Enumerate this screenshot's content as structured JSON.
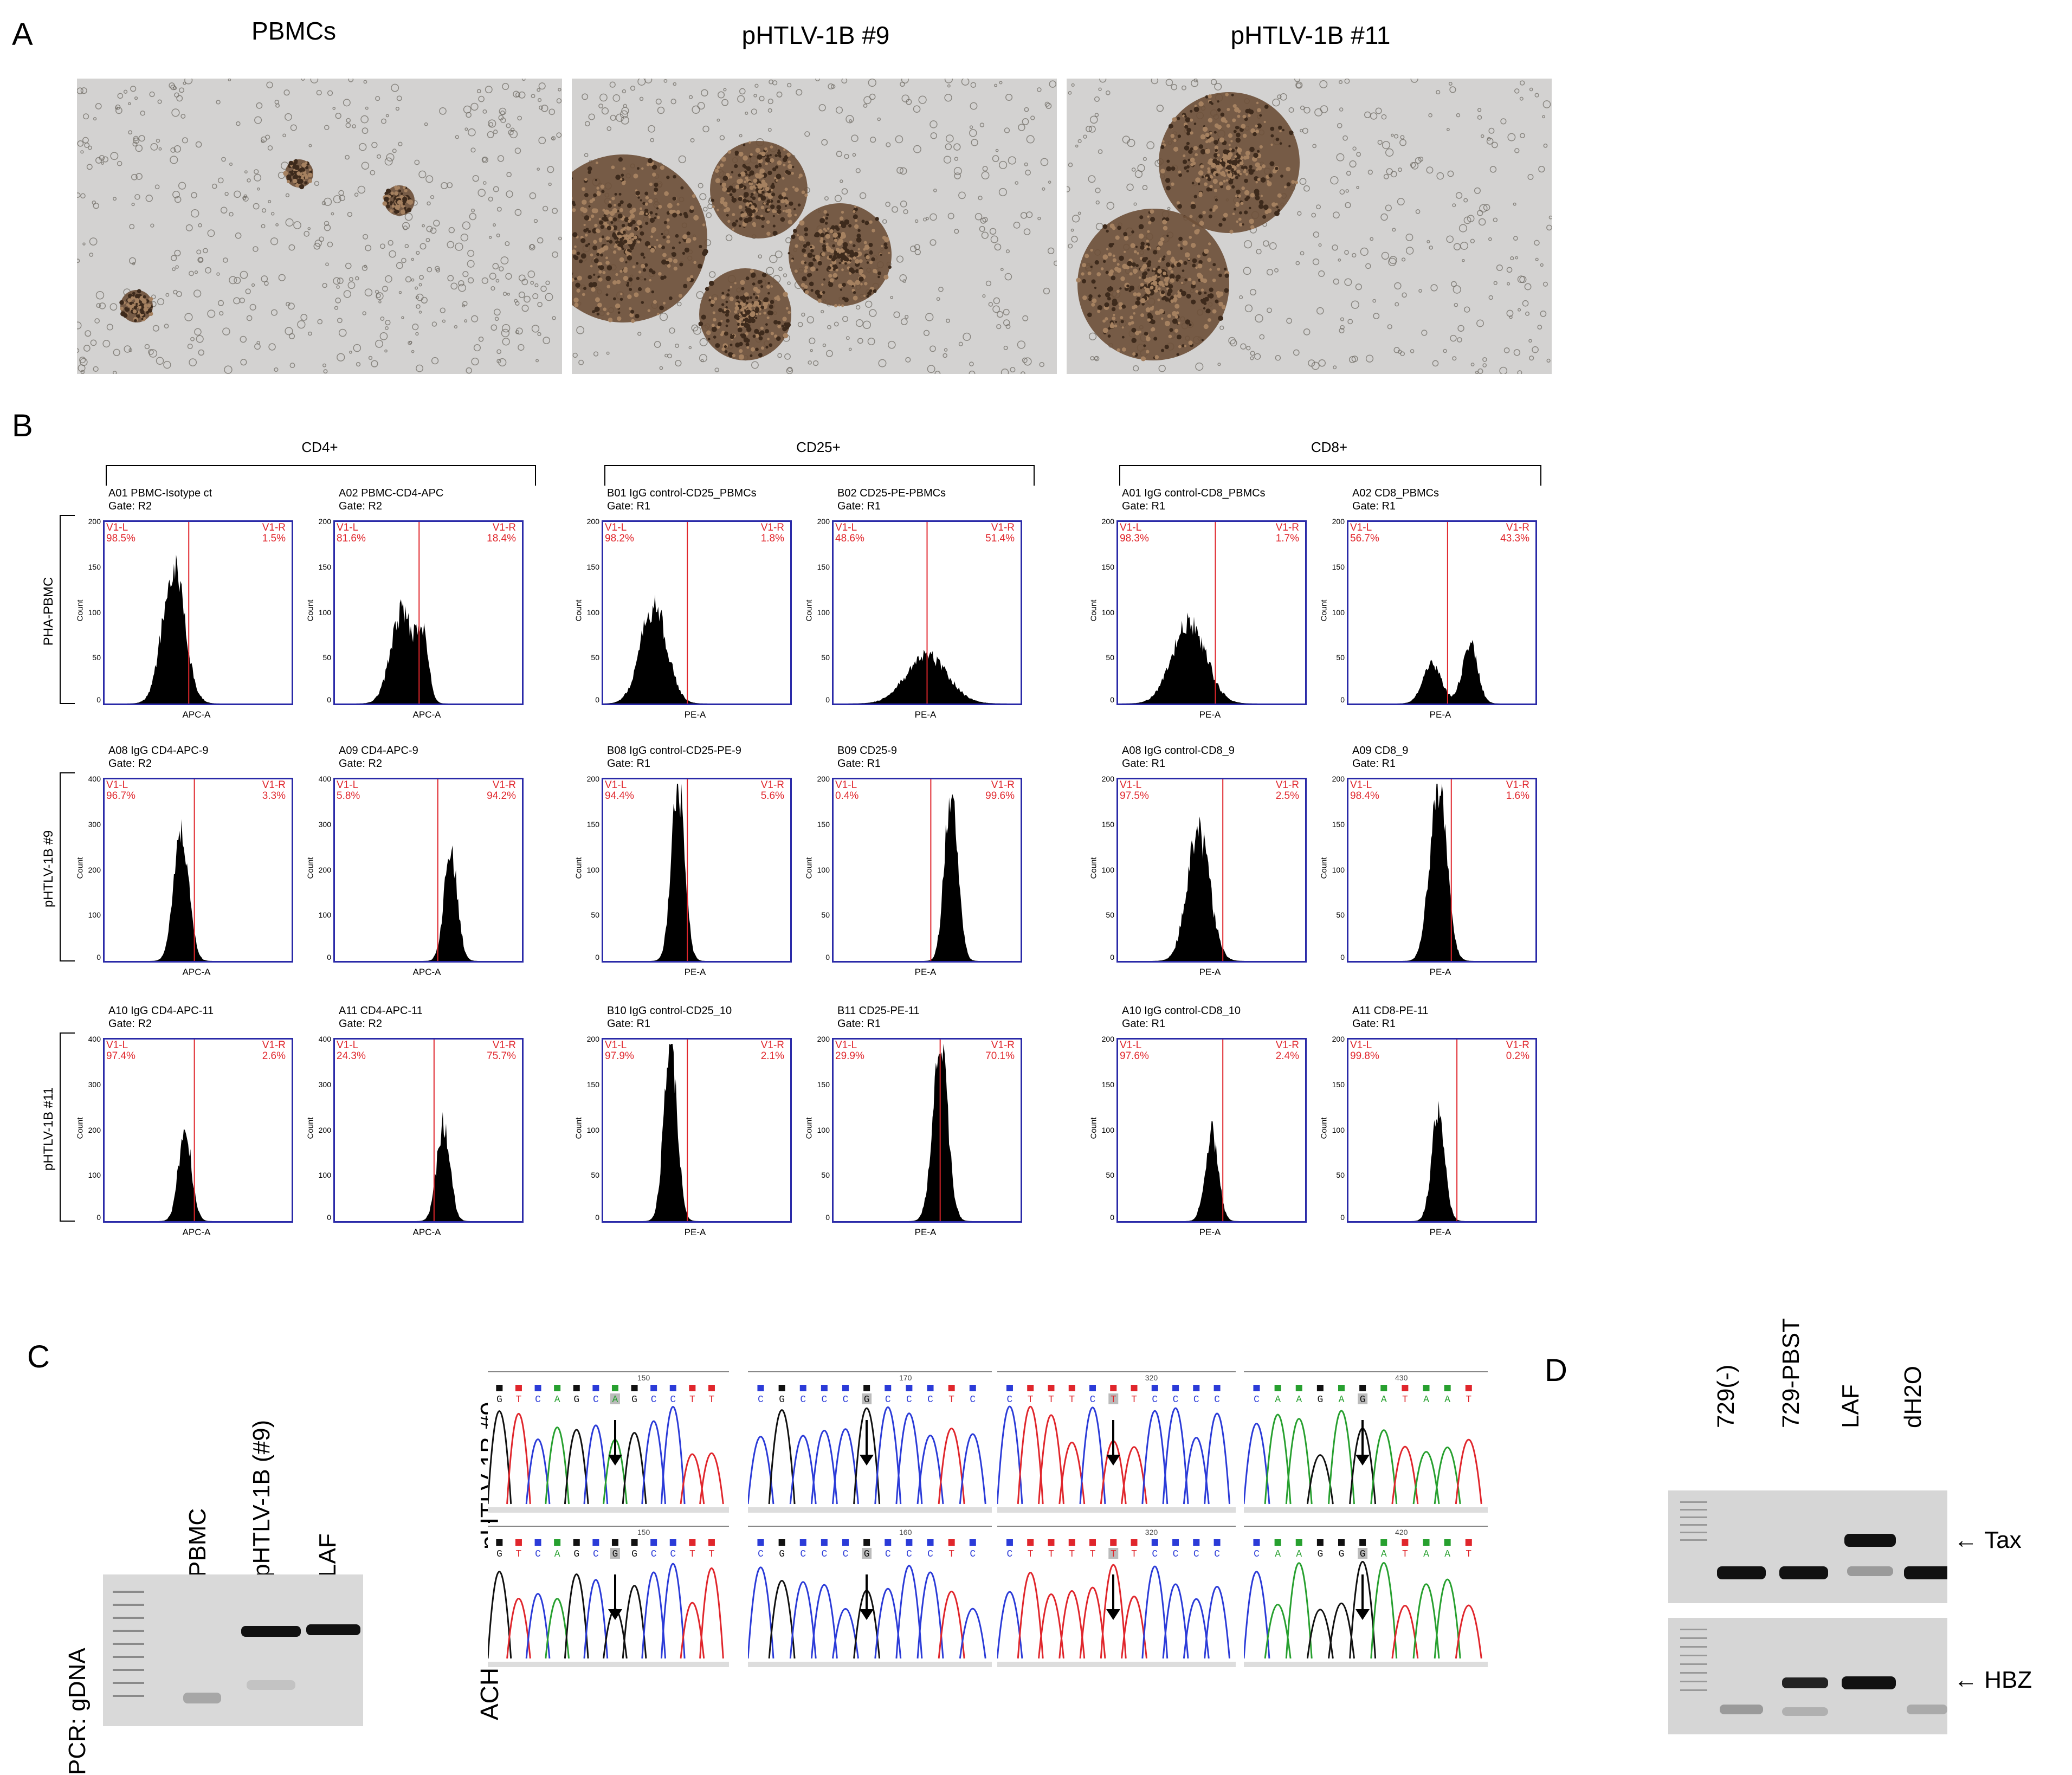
{
  "panels": {
    "A": "A",
    "B": "B",
    "C": "C",
    "D": "D"
  },
  "panelA": {
    "titles": [
      "PBMCs",
      "pHTLV-1B #9",
      "pHTLV-1B #11"
    ]
  },
  "panelB": {
    "groups": [
      "CD4+",
      "CD25+",
      "CD8+"
    ],
    "rows": [
      "PHA-PBMC",
      "pHTLV-1B #9",
      "pHTLV-1B #11"
    ],
    "region_left": "V1-L",
    "region_right": "V1-R",
    "ylabel": "Count",
    "plots": [
      [
        {
          "title": "A01 PBMC-Isotype ct",
          "gate": "Gate: R2",
          "l": "98.5%",
          "r": "1.5%",
          "x": "APC-A",
          "ymax": "200",
          "ticks": [
            "50",
            "100",
            "150",
            "200"
          ],
          "peaks": [
            [
              0.37,
              0.75,
              0.06
            ]
          ],
          "cut": 0.45
        },
        {
          "title": "A02 PBMC-CD4-APC",
          "gate": "Gate: R2",
          "l": "81.6%",
          "r": "18.4%",
          "x": "APC-A",
          "ymax": "200",
          "ticks": [
            "50",
            "100",
            "150",
            "200"
          ],
          "peaks": [
            [
              0.36,
              0.52,
              0.06
            ],
            [
              0.47,
              0.34,
              0.03
            ]
          ],
          "cut": 0.45
        },
        {
          "title": "B01 IgG control-CD25_PBMCs",
          "gate": "Gate: R1",
          "l": "98.2%",
          "r": "1.8%",
          "x": "PE-A",
          "ymax": "200",
          "ticks": [
            "50",
            "100",
            "150",
            "200"
          ],
          "peaks": [
            [
              0.27,
              0.55,
              0.07
            ]
          ],
          "cut": 0.45
        },
        {
          "title": "B02 CD25-PE-PBMCs",
          "gate": "Gate: R1",
          "l": "48.6%",
          "r": "51.4%",
          "x": "PE-A",
          "ymax": "200",
          "ticks": [
            "50",
            "100",
            "150",
            "200"
          ],
          "peaks": [
            [
              0.5,
              0.27,
              0.11
            ]
          ],
          "cut": 0.5
        },
        {
          "title": "A01 IgG control-CD8_PBMCs",
          "gate": "Gate: R1",
          "l": "98.3%",
          "r": "1.7%",
          "x": "PE-A",
          "ymax": "200",
          "ticks": [
            "50",
            "100",
            "150",
            "200"
          ],
          "peaks": [
            [
              0.38,
              0.45,
              0.09
            ]
          ],
          "cut": 0.52
        },
        {
          "title": "A02 CD8_PBMCs",
          "gate": "Gate: R1",
          "l": "56.7%",
          "r": "43.3%",
          "x": "PE-A",
          "ymax": "200",
          "ticks": [
            "50",
            "100",
            "150",
            "200"
          ],
          "peaks": [
            [
              0.45,
              0.22,
              0.05
            ],
            [
              0.65,
              0.34,
              0.04
            ]
          ],
          "cut": 0.53
        }
      ],
      [
        {
          "title": "A08 IgG CD4-APC-9",
          "gate": "Gate: R2",
          "l": "96.7%",
          "r": "3.3%",
          "x": "APC-A",
          "ymax": "400",
          "ticks": [
            "100",
            "200",
            "300",
            "400"
          ],
          "peaks": [
            [
              0.41,
              0.72,
              0.04
            ]
          ],
          "cut": 0.48
        },
        {
          "title": "A09  CD4-APC-9",
          "gate": "Gate: R2",
          "l": "5.8%",
          "r": "94.2%",
          "x": "APC-A",
          "ymax": "400",
          "ticks": [
            "100",
            "200",
            "300",
            "400"
          ],
          "peaks": [
            [
              0.62,
              0.62,
              0.035
            ]
          ],
          "cut": 0.55
        },
        {
          "title": "B08 IgG control-CD25-PE-9",
          "gate": "Gate: R1",
          "l": "94.4%",
          "r": "5.6%",
          "x": "PE-A",
          "ymax": "200",
          "ticks": [
            "50",
            "100",
            "150",
            "200"
          ],
          "peaks": [
            [
              0.4,
              1.0,
              0.035
            ]
          ],
          "cut": 0.45
        },
        {
          "title": "B09 CD25-9",
          "gate": "Gate: R1",
          "l": "0.4%",
          "r": "99.6%",
          "x": "PE-A",
          "ymax": "200",
          "ticks": [
            "50",
            "100",
            "150",
            "200"
          ],
          "peaks": [
            [
              0.63,
              1.0,
              0.035
            ]
          ],
          "cut": 0.52
        },
        {
          "title": "A08 IgG control-CD8_9",
          "gate": "Gate: R1",
          "l": "97.5%",
          "r": "2.5%",
          "x": "PE-A",
          "ymax": "200",
          "ticks": [
            "50",
            "100",
            "150",
            "200"
          ],
          "peaks": [
            [
              0.43,
              0.72,
              0.06
            ]
          ],
          "cut": 0.56
        },
        {
          "title": "A09 CD8_9",
          "gate": "Gate: R1",
          "l": "98.4%",
          "r": "1.6%",
          "x": "PE-A",
          "ymax": "200",
          "ticks": [
            "50",
            "100",
            "150",
            "200"
          ],
          "peaks": [
            [
              0.48,
              1.0,
              0.045
            ]
          ],
          "cut": 0.55
        }
      ],
      [
        {
          "title": "A10 IgG CD4-APC-11",
          "gate": "Gate: R2",
          "l": "97.4%",
          "r": "2.6%",
          "x": "APC-A",
          "ymax": "400",
          "ticks": [
            "100",
            "200",
            "300",
            "400"
          ],
          "peaks": [
            [
              0.43,
              0.5,
              0.035
            ]
          ],
          "cut": 0.48
        },
        {
          "title": "A11  CD4-APC-11",
          "gate": "Gate: R2",
          "l": "24.3%",
          "r": "75.7%",
          "x": "APC-A",
          "ymax": "400",
          "ticks": [
            "100",
            "200",
            "300",
            "400"
          ],
          "peaks": [
            [
              0.58,
              0.55,
              0.035
            ]
          ],
          "cut": 0.53
        },
        {
          "title": "B10 IgG control-CD25_10",
          "gate": "Gate: R1",
          "l": "97.9%",
          "r": "2.1%",
          "x": "PE-A",
          "ymax": "200",
          "ticks": [
            "50",
            "100",
            "150",
            "200"
          ],
          "peaks": [
            [
              0.36,
              1.0,
              0.035
            ]
          ],
          "cut": 0.45
        },
        {
          "title": "B11 CD25-PE-11",
          "gate": "Gate: R1",
          "l": "29.9%",
          "r": "70.1%",
          "x": "PE-A",
          "ymax": "200",
          "ticks": [
            "50",
            "100",
            "150",
            "200"
          ],
          "peaks": [
            [
              0.57,
              1.0,
              0.04
            ]
          ],
          "cut": 0.57
        },
        {
          "title": "A10 IgG control-CD8_10",
          "gate": "Gate: R1",
          "l": "97.6%",
          "r": "2.4%",
          "x": "PE-A",
          "ymax": "200",
          "ticks": [
            "50",
            "100",
            "150",
            "200"
          ],
          "peaks": [
            [
              0.5,
              0.5,
              0.035
            ]
          ],
          "cut": 0.56
        },
        {
          "title": "A11 CD8-PE-11",
          "gate": "Gate: R1",
          "l": "99.8%",
          "r": "0.2%",
          "x": "PE-A",
          "ymax": "200",
          "ticks": [
            "50",
            "100",
            "150",
            "200"
          ],
          "peaks": [
            [
              0.48,
              0.6,
              0.035
            ]
          ],
          "cut": 0.58
        }
      ]
    ]
  },
  "panelC": {
    "pcr_label": "PCR:  gDNA",
    "lanes": [
      "PBMC",
      "pHTLV-1B (#9)",
      "LAF"
    ],
    "seq_rows": [
      "pHTLV-1B #9",
      "ACH"
    ],
    "seq_top": [
      {
        "bases": "GTCAGCAGCCTT",
        "pos": "150"
      },
      {
        "bases": "CGCCCGCCCTC",
        "pos": "170"
      },
      {
        "bases": "CTTTCTTCCCC",
        "pos": "320"
      },
      {
        "bases": "CAAGAGATAAT",
        "pos": "430"
      }
    ],
    "seq_bottom": [
      {
        "bases": "GTCAGCGGCCTT",
        "pos": "150"
      },
      {
        "bases": "CGCCCGCCCTC",
        "pos": "160"
      },
      {
        "bases": "CTTTTTTCCCC",
        "pos": "320"
      },
      {
        "bases": "CAAGGGATAAT",
        "pos": "420"
      }
    ]
  },
  "panelD": {
    "lanes": [
      "729(-)",
      "729-PBST",
      "LAF",
      "dH2O"
    ],
    "bands": [
      "Tax",
      "HBZ"
    ]
  },
  "colors": {
    "plot_border": "#2a2aa8",
    "percent": "#e0262c",
    "A": "#27a02f",
    "C": "#2b3bd8",
    "G": "#111111",
    "T": "#e0262c"
  }
}
